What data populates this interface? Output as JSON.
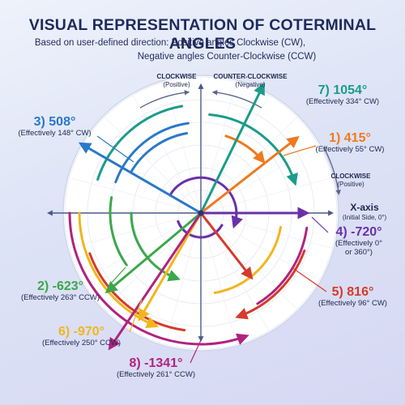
{
  "title": "VISUAL REPRESENTATION OF COTERMINAL ANGLES",
  "subtitle_line1": "Based on user-defined direction: Positive angles Clockwise (CW),",
  "subtitle_line2": "Negative angles Counter-Clockwise (CCW)",
  "direction_labels": {
    "cw_top": "CLOCKWISE",
    "cw_top_note": "(Positive)",
    "ccw_top": "COUNTER-CLOCKWISE",
    "ccw_top_note": "(Negative)",
    "cw_right": "CLOCKWISE",
    "cw_right_note": "(Positive)"
  },
  "x_axis": {
    "label": "X-axis",
    "note": "(Initial Side, 0°)"
  },
  "angles": [
    {
      "id": 1,
      "label": "1) 415°",
      "effective": "(Effectively 55° CW)",
      "color": "#ee7a1e",
      "effective_deg": 55
    },
    {
      "id": 2,
      "label": "2) -623°",
      "effective": "(Effectively 263° CCW)",
      "color": "#3aa84a",
      "effective_deg": 263
    },
    {
      "id": 3,
      "label": "3) 508°",
      "effective": "(Effectively 148° CW)",
      "color": "#2a78c8",
      "effective_deg": 148
    },
    {
      "id": 4,
      "label": "4) -720°",
      "effective": "(Effectively 0° or 360°)",
      "color": "#6a30a8",
      "effective_deg": 0
    },
    {
      "id": 5,
      "label": "5) 816°",
      "effective": "(Effectively 96° CW)",
      "color": "#d63a2a",
      "effective_deg": 96
    },
    {
      "id": 6,
      "label": "6) -970°",
      "effective": "(Effectively 250° CCW)",
      "color": "#f2b51e",
      "effective_deg": 250
    },
    {
      "id": 7,
      "label": "7) 1054°",
      "effective": "(Effectively 334° CW)",
      "color": "#1c9b8a",
      "effective_deg": 334
    },
    {
      "id": 8,
      "label": "8) -1341°",
      "effective": "(Effectively 261° CCW)",
      "color": "#b0237f",
      "effective_deg": 261
    }
  ]
}
